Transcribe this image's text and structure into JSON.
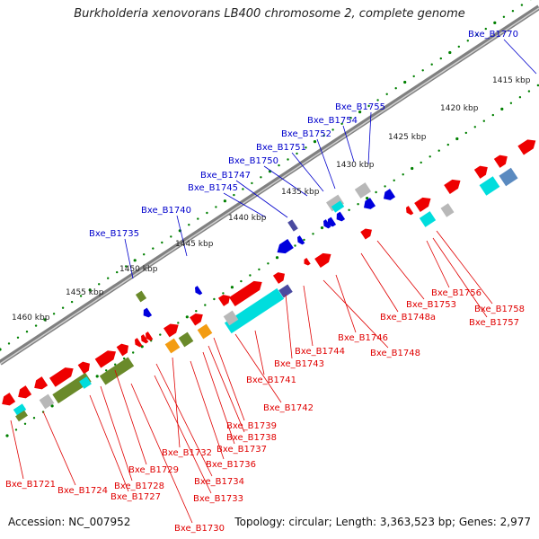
{
  "title": "Burkholderia xenovorans LB400 chromosome 2, complete genome",
  "footer": {
    "accession": "Accession: NC_007952",
    "topology": "Topology: circular; Length: 3,363,523 bp; Genes: 2,977"
  },
  "colors": {
    "label_top": "#0000cc",
    "label_bottom": "#e00000",
    "ruler_tick": "#008000",
    "backbone": "#808080",
    "red": "#ee0000",
    "blue": "#0000dd",
    "navy": "#4a4aa0",
    "green": "#6a8a2a",
    "cyan": "#00dddd",
    "gray": "#b8b8b8",
    "orange": "#f39c12",
    "steel": "#5a8ac0"
  },
  "ruler_labels": [
    {
      "text": "1415 kbp"
    },
    {
      "text": "1420 kbp"
    },
    {
      "text": "1425 kbp"
    },
    {
      "text": "1430 kbp"
    },
    {
      "text": "1435 kbp"
    },
    {
      "text": "1440 kbp"
    },
    {
      "text": "1445 kbp"
    },
    {
      "text": "1450 kbp"
    },
    {
      "text": "1455 kbp"
    },
    {
      "text": "1460 kbp"
    }
  ],
  "top_labels": [
    {
      "text": "Bxe_B1770"
    },
    {
      "text": "Bxe_B1755"
    },
    {
      "text": "Bxe_B1754"
    },
    {
      "text": "Bxe_B1752"
    },
    {
      "text": "Bxe_B1751"
    },
    {
      "text": "Bxe_B1750"
    },
    {
      "text": "Bxe_B1747"
    },
    {
      "text": "Bxe_B1745"
    },
    {
      "text": "Bxe_B1740"
    },
    {
      "text": "Bxe_B1735"
    }
  ],
  "bottom_labels": [
    {
      "text": "Bxe_B1756"
    },
    {
      "text": "Bxe_B1758"
    },
    {
      "text": "Bxe_B1757"
    },
    {
      "text": "Bxe_B1753"
    },
    {
      "text": "Bxe_B1748a"
    },
    {
      "text": "Bxe_B1746"
    },
    {
      "text": "Bxe_B1748"
    },
    {
      "text": "Bxe_B1744"
    },
    {
      "text": "Bxe_B1743"
    },
    {
      "text": "Bxe_B1741"
    },
    {
      "text": "Bxe_B1742"
    },
    {
      "text": "Bxe_B1739"
    },
    {
      "text": "Bxe_B1738"
    },
    {
      "text": "Bxe_B1737"
    },
    {
      "text": "Bxe_B1736"
    },
    {
      "text": "Bxe_B1732"
    },
    {
      "text": "Bxe_B1734"
    },
    {
      "text": "Bxe_B1733"
    },
    {
      "text": "Bxe_B1730"
    },
    {
      "text": "Bxe_B1729"
    },
    {
      "text": "Bxe_B1728"
    },
    {
      "text": "Bxe_B1727"
    },
    {
      "text": "Bxe_B1724"
    },
    {
      "text": "Bxe_B1721"
    }
  ]
}
